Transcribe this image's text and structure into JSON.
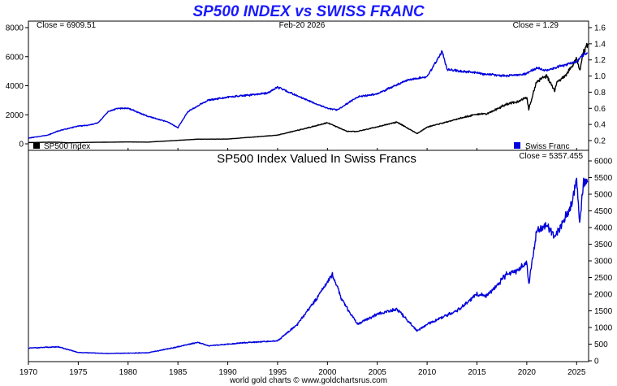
{
  "chart_data": [
    {
      "type": "line",
      "title": "SP500 INDEX vs SWISS FRANC",
      "date_label": "Feb-20  2026",
      "close_left": "Close = 6909.51",
      "close_right": "Close = 1.29",
      "x_ticks": [
        "1970",
        "1975",
        "1980",
        "1985",
        "1990",
        "1995",
        "2000",
        "2005",
        "2010",
        "2015",
        "2020",
        "2025"
      ],
      "y_left": {
        "ticks": [
          "0",
          "2000",
          "4000",
          "6000",
          "8000"
        ],
        "ylim": [
          0,
          8000
        ]
      },
      "y_right": {
        "ticks": [
          "0.2",
          "0.4",
          "0.6",
          "0.8",
          "1.0",
          "1.2",
          "1.4",
          "1.6"
        ],
        "ylim": [
          0.2,
          1.6
        ]
      },
      "legend_left": "SP500 Index",
      "legend_right": "Swiss Franc",
      "series": [
        {
          "name": "SP500 Index",
          "axis": "left",
          "color": "#000000",
          "x": [
            1970,
            1972,
            1973,
            1974,
            1976,
            1980,
            1982,
            1987,
            1990,
            1995,
            1998,
            2000,
            2002,
            2003,
            2007,
            2009,
            2010,
            2013,
            2015,
            2016,
            2018,
            2019,
            2020,
            2020.2,
            2021,
            2022,
            2022.8,
            2023,
            2024,
            2025,
            2025.3,
            2025.6,
            2026.1
          ],
          "y": [
            90,
            110,
            110,
            70,
            100,
            130,
            120,
            320,
            330,
            600,
            1100,
            1450,
            850,
            850,
            1500,
            700,
            1150,
            1700,
            2050,
            2050,
            2750,
            2900,
            3200,
            2400,
            4300,
            4700,
            3600,
            4200,
            4800,
            5900,
            5000,
            6200,
            6900
          ]
        },
        {
          "name": "Swiss Franc",
          "axis": "right",
          "color": "#0000dd",
          "x": [
            1970,
            1972,
            1973,
            1975,
            1976,
            1977,
            1978,
            1979,
            1980,
            1982,
            1984,
            1985,
            1986,
            1988,
            1990,
            1992,
            1994,
            1995,
            1998,
            2000,
            2001,
            2003,
            2005,
            2008,
            2009,
            2010,
            2011,
            2011.5,
            2012,
            2015,
            2016,
            2018,
            2020,
            2021,
            2022,
            2023,
            2024,
            2025,
            2025.5,
            2026.1
          ],
          "y": [
            0.23,
            0.27,
            0.32,
            0.38,
            0.39,
            0.42,
            0.56,
            0.6,
            0.6,
            0.5,
            0.43,
            0.36,
            0.56,
            0.7,
            0.74,
            0.76,
            0.79,
            0.86,
            0.7,
            0.6,
            0.58,
            0.74,
            0.78,
            0.95,
            0.97,
            0.99,
            1.2,
            1.31,
            1.08,
            1.04,
            1.02,
            1.0,
            1.03,
            1.1,
            1.07,
            1.11,
            1.14,
            1.18,
            1.25,
            1.29
          ]
        }
      ]
    },
    {
      "type": "line",
      "title": "SP500 Index Valued In Swiss Francs",
      "close_label": "Close = 5357.455",
      "x_ticks": [
        "1970",
        "1975",
        "1980",
        "1985",
        "1990",
        "1995",
        "2000",
        "2005",
        "2010",
        "2015",
        "2020",
        "2025"
      ],
      "y_right": {
        "ticks": [
          "0",
          "500",
          "1000",
          "1500",
          "2000",
          "2500",
          "3000",
          "3500",
          "4000",
          "4500",
          "5000",
          "5500",
          "6000"
        ],
        "ylim": [
          0,
          6000
        ]
      },
      "series": [
        {
          "name": "SP500 Index Valued In Swiss Francs",
          "color": "#0000dd",
          "x": [
            1970,
            1973,
            1975,
            1978,
            1982,
            1985,
            1987,
            1988,
            1990,
            1992,
            1995,
            1997,
            1999,
            2000.5,
            2001.5,
            2003,
            2005,
            2007,
            2009,
            2010,
            2013,
            2015,
            2016,
            2018,
            2019,
            2020,
            2020.2,
            2021,
            2022,
            2022.8,
            2023.5,
            2024.5,
            2025,
            2025.3,
            2025.7,
            2026.1
          ],
          "y": [
            380,
            420,
            250,
            220,
            240,
            420,
            560,
            450,
            500,
            550,
            600,
            1100,
            1900,
            2600,
            1800,
            1100,
            1400,
            1550,
            900,
            1100,
            1500,
            2000,
            1950,
            2600,
            2700,
            2950,
            2300,
            3900,
            4100,
            3700,
            4100,
            4700,
            5500,
            4100,
            5400,
            5357
          ]
        }
      ]
    }
  ],
  "footer": "world gold charts  © www.goldchartsrus.com"
}
